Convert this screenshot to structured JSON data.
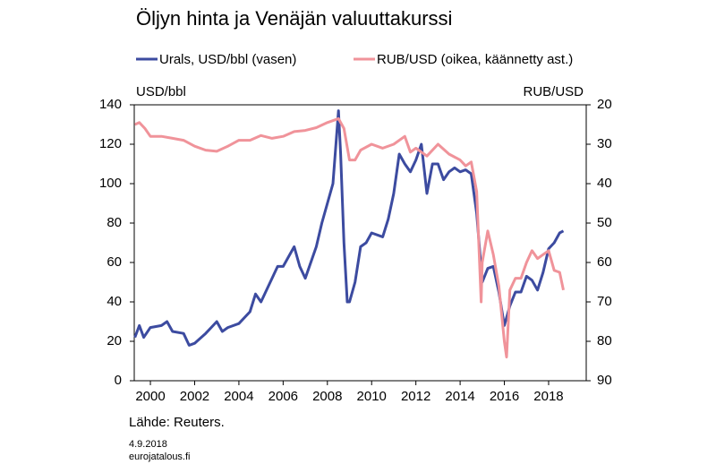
{
  "chart_data": {
    "type": "line",
    "title": "Öljyn hinta ja Venäjän valuuttakurssi",
    "y_label": "USD/bbl",
    "y2_label": "RUB/USD",
    "source": "Lähde: Reuters.",
    "date": "4.9.2018",
    "site": "eurojatalous.fi",
    "xlim": [
      1999.27,
      2019.7
    ],
    "xticks": [
      2000,
      2002,
      2004,
      2006,
      2008,
      2010,
      2012,
      2014,
      2016,
      2018
    ],
    "ylim": [
      0,
      140
    ],
    "yticks": [
      0,
      20,
      40,
      60,
      80,
      100,
      120,
      140
    ],
    "y2lim": [
      90,
      20
    ],
    "y2ticks": [
      20,
      30,
      40,
      50,
      60,
      70,
      80,
      90
    ],
    "series": [
      {
        "name": "Urals, USD/bbl (vasen)",
        "color": "#3c4ba0",
        "x": [
          1999.3,
          1999.5,
          1999.7,
          2000.0,
          2000.5,
          2000.75,
          2001.0,
          2001.5,
          2001.75,
          2002.0,
          2002.5,
          2002.75,
          2003.0,
          2003.25,
          2003.5,
          2004.0,
          2004.5,
          2004.75,
          2005.0,
          2005.5,
          2005.75,
          2006.0,
          2006.5,
          2006.75,
          2007.0,
          2007.5,
          2007.75,
          2008.0,
          2008.25,
          2008.5,
          2008.6,
          2008.75,
          2008.9,
          2009.0,
          2009.25,
          2009.5,
          2009.75,
          2010.0,
          2010.5,
          2010.75,
          2011.0,
          2011.25,
          2011.5,
          2011.75,
          2012.0,
          2012.25,
          2012.5,
          2012.75,
          2013.0,
          2013.25,
          2013.5,
          2013.75,
          2014.0,
          2014.25,
          2014.5,
          2014.75,
          2015.0,
          2015.25,
          2015.5,
          2015.75,
          2016.0,
          2016.25,
          2016.5,
          2016.75,
          2017.0,
          2017.25,
          2017.5,
          2017.75,
          2018.0,
          2018.25,
          2018.5,
          2018.67
        ],
        "values": [
          22,
          28,
          22,
          27,
          28,
          30,
          25,
          24,
          18,
          19,
          24,
          27,
          30,
          25,
          27,
          29,
          35,
          44,
          40,
          52,
          58,
          58,
          68,
          58,
          52,
          68,
          80,
          90,
          100,
          137,
          115,
          70,
          40,
          40,
          50,
          68,
          70,
          75,
          73,
          82,
          95,
          115,
          110,
          106,
          112,
          120,
          95,
          110,
          110,
          102,
          106,
          108,
          106,
          107,
          105,
          85,
          50,
          57,
          58,
          45,
          28,
          38,
          45,
          45,
          53,
          51,
          46,
          55,
          67,
          70,
          75,
          76
        ],
        "axis": "y"
      },
      {
        "name": "RUB/USD (oikea, käännetty ast.)",
        "color": "#f0939a",
        "x": [
          1999.3,
          1999.5,
          1999.75,
          2000.0,
          2000.5,
          2001.0,
          2001.5,
          2002.0,
          2002.5,
          2003.0,
          2003.5,
          2004.0,
          2004.5,
          2005.0,
          2005.5,
          2006.0,
          2006.5,
          2007.0,
          2007.5,
          2008.0,
          2008.5,
          2008.75,
          2009.0,
          2009.25,
          2009.5,
          2010.0,
          2010.5,
          2011.0,
          2011.5,
          2011.75,
          2012.0,
          2012.5,
          2013.0,
          2013.5,
          2014.0,
          2014.25,
          2014.5,
          2014.75,
          2014.95,
          2015.0,
          2015.25,
          2015.5,
          2015.75,
          2016.0,
          2016.1,
          2016.25,
          2016.5,
          2016.75,
          2017.0,
          2017.25,
          2017.5,
          2017.75,
          2018.0,
          2018.25,
          2018.5,
          2018.67
        ],
        "values": [
          25,
          24.5,
          26,
          28,
          28,
          28.5,
          29,
          30.5,
          31.5,
          31.8,
          30.5,
          29,
          29,
          27.8,
          28.5,
          28,
          26.8,
          26.5,
          25.8,
          24.5,
          23.5,
          26,
          34,
          34,
          31.5,
          30,
          31,
          30,
          28,
          32,
          31,
          33,
          30,
          32.5,
          34,
          35.5,
          34.5,
          42,
          70,
          60,
          52,
          58,
          66,
          80,
          84,
          67,
          64,
          64,
          60,
          57,
          59,
          58,
          57,
          62,
          62.5,
          67
        ],
        "axis": "y2"
      }
    ]
  }
}
